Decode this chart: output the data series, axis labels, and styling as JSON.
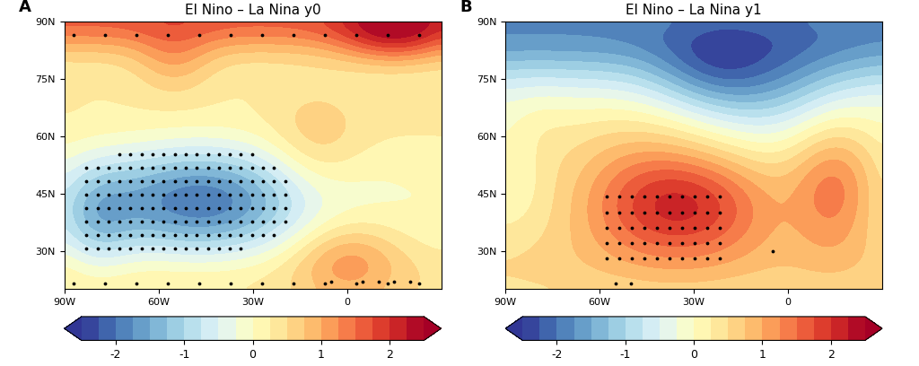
{
  "title_A": "El Nino – La Nina y0",
  "title_B": "El Nino – La Nina y1",
  "label_A": "A",
  "label_B": "B",
  "lon_min": -90,
  "lon_max": 30,
  "lat_min": 20,
  "lat_max": 90,
  "xticks": [
    -90,
    -60,
    -30,
    0
  ],
  "xtick_labels": [
    "90W",
    "60W",
    "30W",
    "0"
  ],
  "yticks": [
    30,
    45,
    60,
    75,
    90
  ],
  "ytick_labels": [
    "30N",
    "45N",
    "60N",
    "75N",
    "90N"
  ],
  "colorbar_ticks": [
    -2,
    -1,
    0,
    1,
    2
  ],
  "vmin": -2.5,
  "vmax": 2.5,
  "background_color": "#ffffff",
  "title_fontsize": 11,
  "label_fontsize": 13,
  "tick_fontsize": 8,
  "colorbar_fontsize": 9,
  "coastline_lw": 0.7,
  "dot_color": "black",
  "dot_size": 3,
  "colormap": "RdYlBu_r"
}
